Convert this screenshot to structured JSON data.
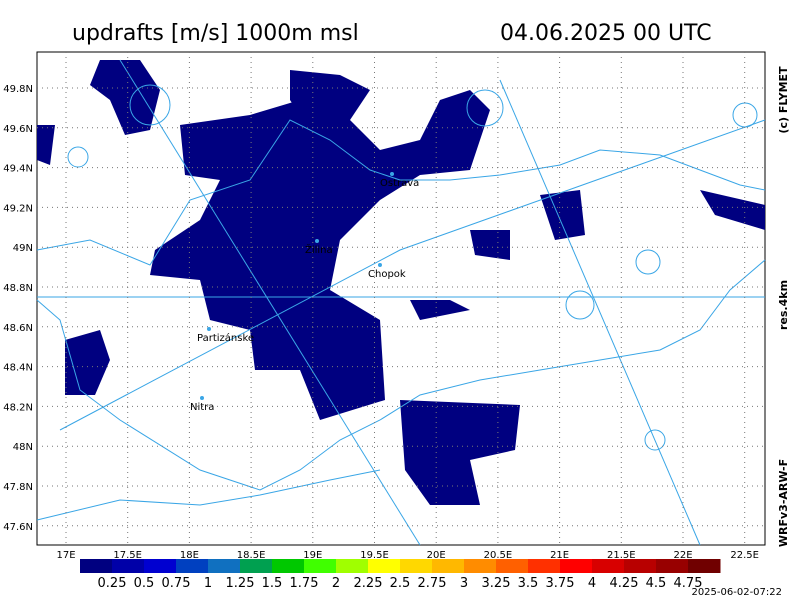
{
  "header": {
    "title": "updrafts [m/s] 1000m msl",
    "datetime": "04.06.2025 00 UTC"
  },
  "side_labels": {
    "copyright": "(c) FLYMET",
    "resolution": "res.4km",
    "model": "WRFv3-ARW-F"
  },
  "timestamp": "2025-06-02-07:22",
  "lat_ticks": [
    "49.8N",
    "49.6N",
    "49.4N",
    "49.2N",
    "49N",
    "48.8N",
    "48.6N",
    "48.4N",
    "48.2N",
    "48N",
    "47.8N",
    "47.6N"
  ],
  "lon_ticks": [
    "17E",
    "17.5E",
    "18E",
    "18.5E",
    "19E",
    "19.5E",
    "20E",
    "20.5E",
    "21E",
    "21.5E",
    "22E",
    "22.5E"
  ],
  "places": [
    "Ostrava",
    "Žilina",
    "Chopok",
    "Partizánske",
    "Nitra"
  ],
  "colorbar": {
    "colors": [
      "#000080",
      "#0000a8",
      "#0000d0",
      "#0040c0",
      "#1070c0",
      "#00a050",
      "#00c800",
      "#40ff00",
      "#a0ff00",
      "#ffff00",
      "#ffd800",
      "#ffb800",
      "#ff8c00",
      "#ff6000",
      "#ff3000",
      "#ff0000",
      "#d80000",
      "#b80000",
      "#980000",
      "#700000"
    ],
    "labels": [
      "0.25",
      "0.5",
      "0.75",
      "1",
      "1.25",
      "1.5",
      "1.75",
      "2",
      "2.25",
      "2.5",
      "2.75",
      "3",
      "3.25",
      "3.5",
      "3.75",
      "4",
      "4.25",
      "4.5",
      "4.75"
    ]
  }
}
